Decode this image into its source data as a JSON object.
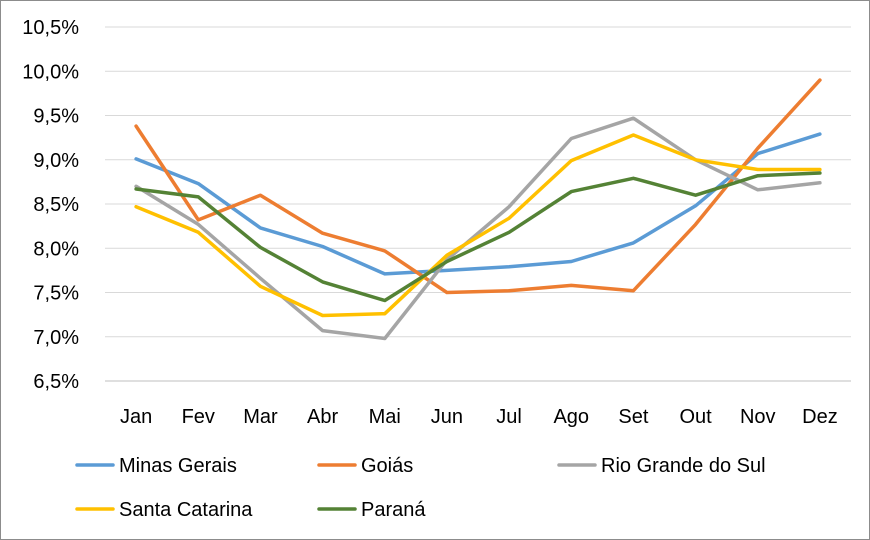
{
  "chart_data": {
    "type": "line",
    "title": "",
    "xlabel": "",
    "ylabel": "",
    "categories": [
      "Jan",
      "Fev",
      "Mar",
      "Abr",
      "Mai",
      "Jun",
      "Jul",
      "Ago",
      "Set",
      "Out",
      "Nov",
      "Dez"
    ],
    "ylim": [
      6.5,
      10.5
    ],
    "yticks": [
      6.5,
      7.0,
      7.5,
      8.0,
      8.5,
      9.0,
      9.5,
      10.0,
      10.5
    ],
    "ytick_labels": [
      "6,5%",
      "7,0%",
      "7,5%",
      "8,0%",
      "8,5%",
      "9,0%",
      "9,5%",
      "10,0%",
      "10,5%"
    ],
    "grid": true,
    "legend_position": "bottom",
    "series": [
      {
        "name": "Minas Gerais",
        "color": "#5B9BD5",
        "values": [
          9.01,
          8.73,
          8.23,
          8.02,
          7.71,
          7.75,
          7.79,
          7.85,
          8.06,
          8.48,
          9.07,
          9.29
        ]
      },
      {
        "name": "Goiás",
        "color": "#ED7D31",
        "values": [
          9.38,
          8.32,
          8.6,
          8.17,
          7.97,
          7.5,
          7.52,
          7.58,
          7.52,
          8.27,
          9.13,
          9.9
        ]
      },
      {
        "name": "Rio Grande do Sul",
        "color": "#A5A5A5",
        "values": [
          8.7,
          8.27,
          7.66,
          7.07,
          6.98,
          7.87,
          8.47,
          9.24,
          9.47,
          9.0,
          8.66,
          8.74
        ]
      },
      {
        "name": "Santa Catarina",
        "color": "#FFC000",
        "values": [
          8.47,
          8.18,
          7.57,
          7.24,
          7.26,
          7.92,
          8.34,
          8.99,
          9.28,
          9.0,
          8.89,
          8.89
        ]
      },
      {
        "name": "Paraná",
        "color": "#548235",
        "values": [
          8.67,
          8.58,
          8.01,
          7.62,
          7.41,
          7.85,
          8.18,
          8.64,
          8.79,
          8.6,
          8.82,
          8.85
        ]
      }
    ]
  }
}
